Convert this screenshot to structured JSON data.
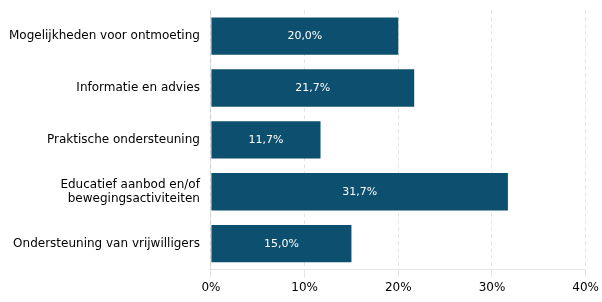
{
  "chart_data": {
    "type": "bar",
    "orientation": "horizontal",
    "categories": [
      "Ondersteuning van vrijwilligers",
      "Educatief aanbod en/of\nbewegingsactiviteiten",
      "Praktische ondersteuning",
      "Informatie en advies",
      "Mogelijkheden voor ontmoeting"
    ],
    "values": [
      15.0,
      31.7,
      11.7,
      21.7,
      20.0
    ],
    "value_labels": [
      "15,0%",
      "31,7%",
      "11,7%",
      "21,7%",
      "20,0%"
    ],
    "data_labels": true,
    "color": "#0d4f6e",
    "xlim": [
      0,
      40
    ],
    "xticks": [
      {
        "value": 0,
        "label": "0%"
      },
      {
        "value": 10,
        "label": "10%"
      },
      {
        "value": 20,
        "label": "20%"
      },
      {
        "value": 30,
        "label": "30%"
      },
      {
        "value": 40,
        "label": "40%"
      }
    ],
    "grid": true
  }
}
